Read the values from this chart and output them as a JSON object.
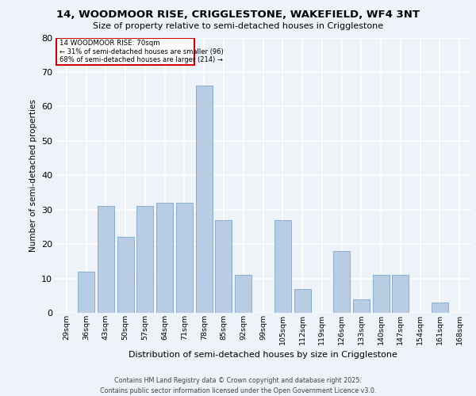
{
  "title_line1": "14, WOODMOOR RISE, CRIGGLESTONE, WAKEFIELD, WF4 3NT",
  "title_line2": "Size of property relative to semi-detached houses in Crigglestone",
  "xlabel": "Distribution of semi-detached houses by size in Crigglestone",
  "ylabel": "Number of semi-detached properties",
  "categories": [
    "29sqm",
    "36sqm",
    "43sqm",
    "50sqm",
    "57sqm",
    "64sqm",
    "71sqm",
    "78sqm",
    "85sqm",
    "92sqm",
    "99sqm",
    "105sqm",
    "112sqm",
    "119sqm",
    "126sqm",
    "133sqm",
    "140sqm",
    "147sqm",
    "154sqm",
    "161sqm",
    "168sqm"
  ],
  "values": [
    0,
    12,
    31,
    22,
    31,
    32,
    32,
    66,
    27,
    11,
    0,
    27,
    7,
    0,
    18,
    4,
    11,
    11,
    0,
    3,
    0
  ],
  "bar_color": "#b8cce4",
  "bar_edge_color": "#7ba7c9",
  "property_label": "14 WOODMOOR RISE: 70sqm",
  "pct_smaller": 31,
  "count_smaller": 96,
  "pct_larger": 68,
  "count_larger": 214,
  "annotation_box_edge": "#cc0000",
  "ylim": [
    0,
    80
  ],
  "yticks": [
    0,
    10,
    20,
    30,
    40,
    50,
    60,
    70,
    80
  ],
  "background_color": "#eef2f9",
  "grid_color": "#ffffff",
  "footer_line1": "Contains HM Land Registry data © Crown copyright and database right 2025.",
  "footer_line2": "Contains public sector information licensed under the Open Government Licence v3.0."
}
